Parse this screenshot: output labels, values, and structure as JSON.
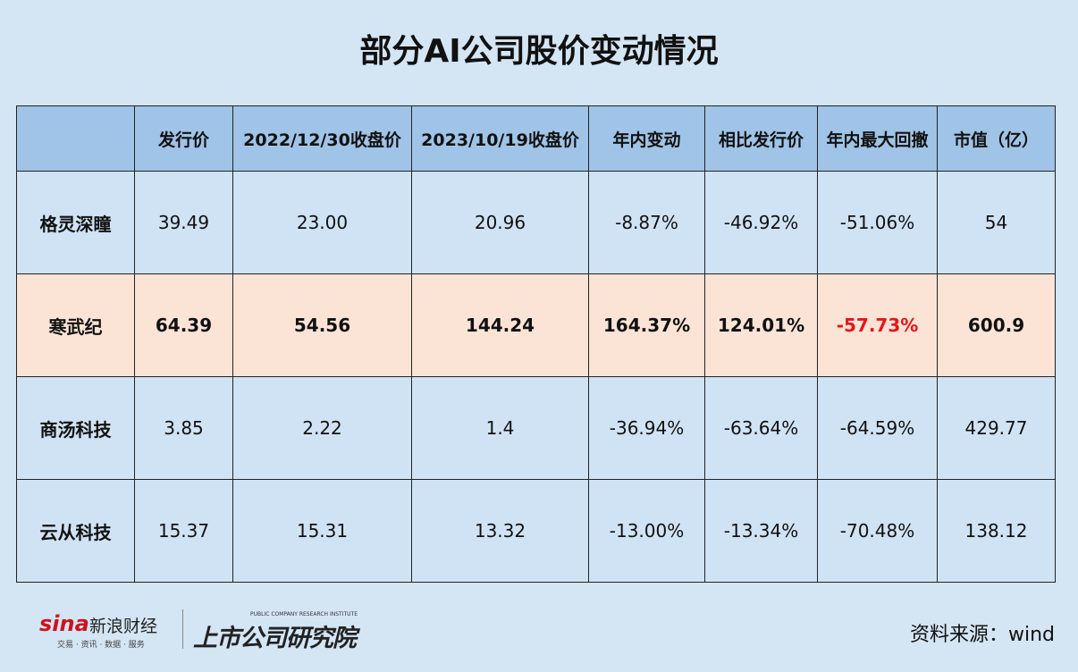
{
  "header": {
    "title": "部分AI公司股价变动情况"
  },
  "table": {
    "columns": [
      "发行价",
      "2022/12/30收盘价",
      "2023/10/19收盘价",
      "年内变动",
      "相比发行价",
      "年内最大回撤",
      "市值（亿）"
    ],
    "rows": [
      [
        "格灵深瞳",
        "39.49",
        "23.00",
        "20.96",
        "-8.87%",
        "-46.92%",
        "-51.06%",
        "54"
      ],
      [
        "寒武纪",
        "64.39",
        "54.56",
        "144.24",
        "164.37%",
        "124.01%",
        "-57.73%",
        "600.9"
      ],
      [
        "商汤科技",
        "3.85",
        "2.22",
        "1.4",
        "-36.94%",
        "-63.64%",
        "-64.59%",
        "429.77"
      ],
      [
        "云从科技",
        "15.37",
        "15.31",
        "13.32",
        "-13.00%",
        "-13.34%",
        "-70.48%",
        "138.12"
      ]
    ]
  },
  "footer": {
    "logo_sina": "sina",
    "logo_name": "新浪财经",
    "logo_slogan": "交易 · 资讯 · 数据 · 服务",
    "institute_en": "PUBLIC COMPANY RESEARCH INSTITUTE",
    "institute_cn": "上市公司研究院",
    "source": "资料来源：wind"
  }
}
